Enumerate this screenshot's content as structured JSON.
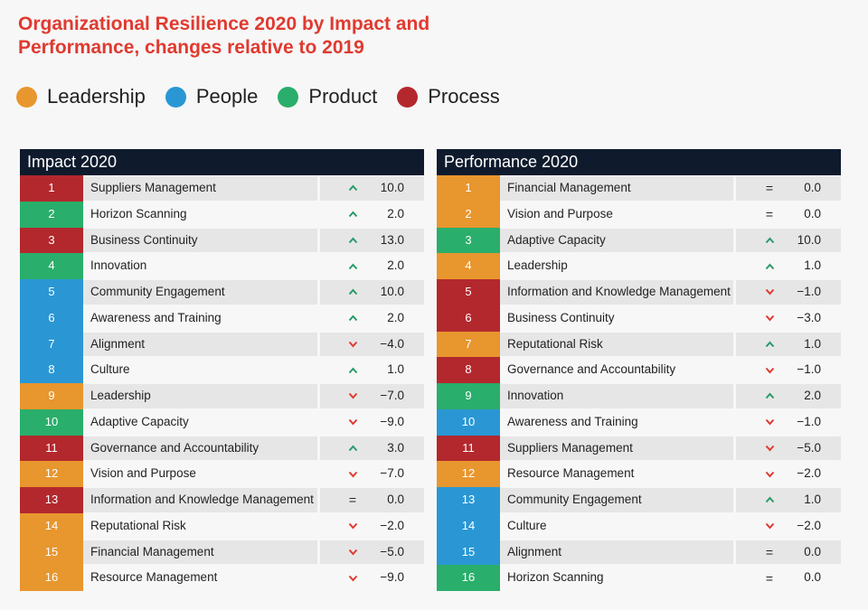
{
  "title": "Organizational Resilience 2020 by Impact and Performance, changes relative to 2019",
  "colors": {
    "Leadership": "#e8962e",
    "People": "#2a97d4",
    "Product": "#2aae6b",
    "Process": "#b3282d",
    "up": "#2a9a6a",
    "down": "#e03a30"
  },
  "legend": [
    {
      "label": "Leadership",
      "category": "Leadership"
    },
    {
      "label": "People",
      "category": "People"
    },
    {
      "label": "Product",
      "category": "Product"
    },
    {
      "label": "Process",
      "category": "Process"
    }
  ],
  "chart_data": [
    {
      "type": "table",
      "title": "Impact 2020",
      "columns": [
        "rank",
        "name",
        "change"
      ],
      "rows": [
        {
          "rank": "1",
          "name": "Suppliers Management",
          "category": "Process",
          "direction": "up",
          "change": "10.0"
        },
        {
          "rank": "2",
          "name": "Horizon Scanning",
          "category": "Product",
          "direction": "up",
          "change": "2.0"
        },
        {
          "rank": "3",
          "name": "Business Continuity",
          "category": "Process",
          "direction": "up",
          "change": "13.0"
        },
        {
          "rank": "4",
          "name": "Innovation",
          "category": "Product",
          "direction": "up",
          "change": "2.0"
        },
        {
          "rank": "5",
          "name": "Community Engagement",
          "category": "People",
          "direction": "up",
          "change": "10.0"
        },
        {
          "rank": "6",
          "name": "Awareness and Training",
          "category": "People",
          "direction": "up",
          "change": "2.0"
        },
        {
          "rank": "7",
          "name": "Alignment",
          "category": "People",
          "direction": "down",
          "change": "−4.0"
        },
        {
          "rank": "8",
          "name": "Culture",
          "category": "People",
          "direction": "up",
          "change": "1.0"
        },
        {
          "rank": "9",
          "name": "Leadership",
          "category": "Leadership",
          "direction": "down",
          "change": "−7.0"
        },
        {
          "rank": "10",
          "name": "Adaptive Capacity",
          "category": "Product",
          "direction": "down",
          "change": "−9.0"
        },
        {
          "rank": "11",
          "name": "Governance and Accountability",
          "category": "Process",
          "direction": "up",
          "change": "3.0"
        },
        {
          "rank": "12",
          "name": "Vision and Purpose",
          "category": "Leadership",
          "direction": "down",
          "change": "−7.0"
        },
        {
          "rank": "13",
          "name": "Information and Knowledge Management",
          "category": "Process",
          "direction": "equal",
          "change": "0.0"
        },
        {
          "rank": "14",
          "name": "Reputational Risk",
          "category": "Leadership",
          "direction": "down",
          "change": "−2.0"
        },
        {
          "rank": "15",
          "name": "Financial Management",
          "category": "Leadership",
          "direction": "down",
          "change": "−5.0"
        },
        {
          "rank": "16",
          "name": "Resource Management",
          "category": "Leadership",
          "direction": "down",
          "change": "−9.0"
        }
      ]
    },
    {
      "type": "table",
      "title": "Performance 2020",
      "columns": [
        "rank",
        "name",
        "change"
      ],
      "rows": [
        {
          "rank": "1",
          "name": "Financial Management",
          "category": "Leadership",
          "direction": "equal",
          "change": "0.0"
        },
        {
          "rank": "2",
          "name": "Vision and Purpose",
          "category": "Leadership",
          "direction": "equal",
          "change": "0.0"
        },
        {
          "rank": "3",
          "name": "Adaptive Capacity",
          "category": "Product",
          "direction": "up",
          "change": "10.0"
        },
        {
          "rank": "4",
          "name": "Leadership",
          "category": "Leadership",
          "direction": "up",
          "change": "1.0"
        },
        {
          "rank": "5",
          "name": "Information and Knowledge Management",
          "category": "Process",
          "direction": "down",
          "change": "−1.0"
        },
        {
          "rank": "6",
          "name": "Business Continuity",
          "category": "Process",
          "direction": "down",
          "change": "−3.0"
        },
        {
          "rank": "7",
          "name": "Reputational Risk",
          "category": "Leadership",
          "direction": "up",
          "change": "1.0"
        },
        {
          "rank": "8",
          "name": "Governance and Accountability",
          "category": "Process",
          "direction": "down",
          "change": "−1.0"
        },
        {
          "rank": "9",
          "name": "Innovation",
          "category": "Product",
          "direction": "up",
          "change": "2.0"
        },
        {
          "rank": "10",
          "name": "Awareness and Training",
          "category": "People",
          "direction": "down",
          "change": "−1.0"
        },
        {
          "rank": "11",
          "name": "Suppliers Management",
          "category": "Process",
          "direction": "down",
          "change": "−5.0"
        },
        {
          "rank": "12",
          "name": "Resource Management",
          "category": "Leadership",
          "direction": "down",
          "change": "−2.0"
        },
        {
          "rank": "13",
          "name": "Community Engagement",
          "category": "People",
          "direction": "up",
          "change": "1.0"
        },
        {
          "rank": "14",
          "name": "Culture",
          "category": "People",
          "direction": "down",
          "change": "−2.0"
        },
        {
          "rank": "15",
          "name": "Alignment",
          "category": "People",
          "direction": "equal",
          "change": "0.0"
        },
        {
          "rank": "16",
          "name": "Horizon Scanning",
          "category": "Product",
          "direction": "equal",
          "change": "0.0"
        }
      ]
    }
  ]
}
